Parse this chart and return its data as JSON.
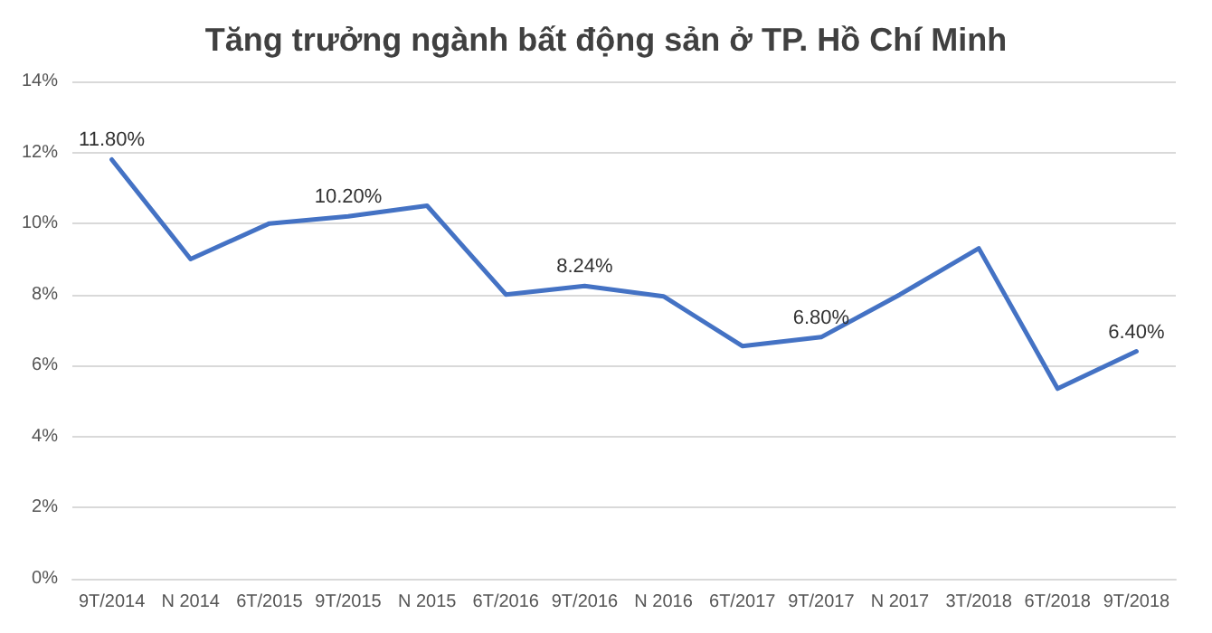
{
  "chart_data": {
    "type": "line",
    "title": "Tăng trưởng ngành bất động sản ở TP. Hồ Chí Minh",
    "categories": [
      "9T/2014",
      "N 2014",
      "6T/2015",
      "9T/2015",
      "N 2015",
      "6T/2016",
      "9T/2016",
      "N 2016",
      "6T/2017",
      "9T/2017",
      "N 2017",
      "3T/2018",
      "6T/2018",
      "9T/2018"
    ],
    "series": [
      {
        "color": "#4472c4",
        "values": [
          11.8,
          9.0,
          10.0,
          10.2,
          10.5,
          8.0,
          8.24,
          7.95,
          6.55,
          6.8,
          8.0,
          9.3,
          5.35,
          6.4
        ],
        "value_labels": [
          "11.80%",
          null,
          null,
          "10.20%",
          null,
          null,
          "8.24%",
          null,
          null,
          "6.80%",
          null,
          null,
          null,
          "6.40%"
        ]
      }
    ],
    "ylim": [
      0,
      14
    ],
    "yticks": [
      {
        "value": 0,
        "label": "0%"
      },
      {
        "value": 2,
        "label": "2%"
      },
      {
        "value": 4,
        "label": "4%"
      },
      {
        "value": 6,
        "label": "6%"
      },
      {
        "value": 8,
        "label": "8%"
      },
      {
        "value": 10,
        "label": "10%"
      },
      {
        "value": 12,
        "label": "12%"
      },
      {
        "value": 14,
        "label": "14%"
      }
    ],
    "grid": "y",
    "marker": "none",
    "line_style": "solid"
  }
}
